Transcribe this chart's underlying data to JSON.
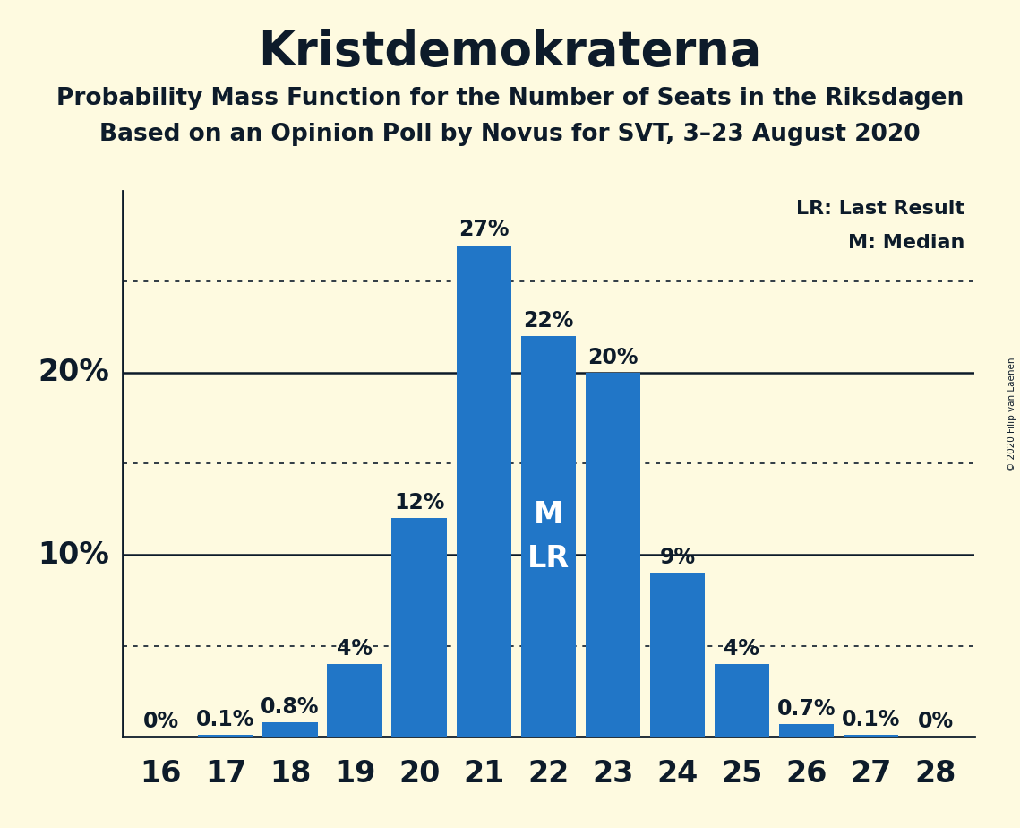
{
  "title": "Kristdemokraterna",
  "subtitle1": "Probability Mass Function for the Number of Seats in the Riksdagen",
  "subtitle2": "Based on an Opinion Poll by Novus for SVT, 3–23 August 2020",
  "copyright": "© 2020 Filip van Laenen",
  "seats": [
    16,
    17,
    18,
    19,
    20,
    21,
    22,
    23,
    24,
    25,
    26,
    27,
    28
  ],
  "values": [
    0.0,
    0.1,
    0.8,
    4.0,
    12.0,
    27.0,
    22.0,
    20.0,
    9.0,
    4.0,
    0.7,
    0.1,
    0.0
  ],
  "bar_labels": [
    "0%",
    "0.1%",
    "0.8%",
    "4%",
    "12%",
    "27%",
    "22%",
    "20%",
    "9%",
    "4%",
    "0.7%",
    "0.1%",
    "0%"
  ],
  "bar_color": "#2176C7",
  "background_color": "#FEFAE0",
  "text_color": "#0D1B2A",
  "median_seat": 22,
  "last_result_seat": 22,
  "solid_gridlines": [
    10,
    20
  ],
  "dotted_gridlines": [
    5,
    15,
    25
  ],
  "legend_lr": "LR: Last Result",
  "legend_m": "M: Median",
  "title_fontsize": 38,
  "subtitle_fontsize": 19,
  "ylabel_fontsize": 24,
  "xlabel_fontsize": 24,
  "bar_label_fontsize": 17,
  "inside_label_fontsize": 24,
  "ylim_max": 30,
  "bar_width": 0.85
}
